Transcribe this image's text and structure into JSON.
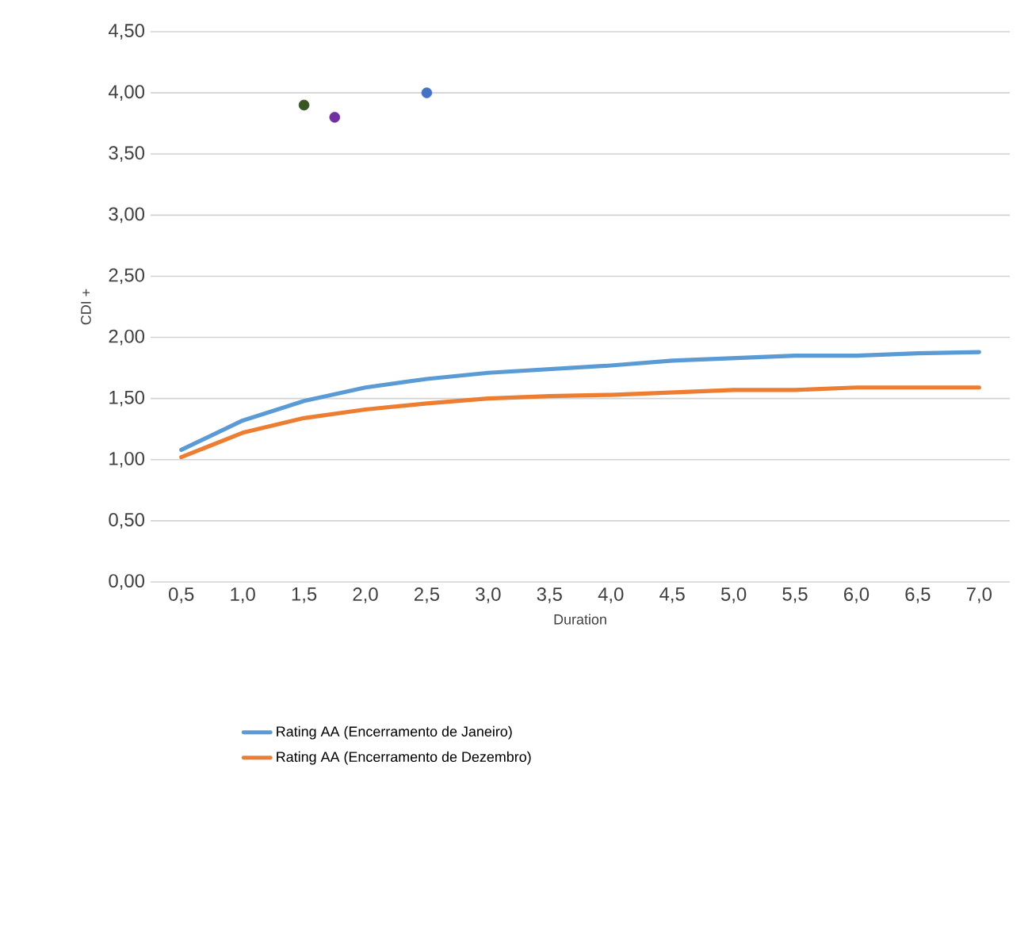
{
  "chart_data": {
    "type": "line",
    "xlabel": "Duration",
    "ylabel": "CDI +",
    "x": [
      0.5,
      1.0,
      1.5,
      2.0,
      2.5,
      3.0,
      3.5,
      4.0,
      4.5,
      5.0,
      5.5,
      6.0,
      6.5,
      7.0
    ],
    "series": [
      {
        "name": "Rating AA (Encerramento de Janeiro)",
        "color": "#5b9bd5",
        "values": [
          1.08,
          1.32,
          1.48,
          1.59,
          1.66,
          1.71,
          1.74,
          1.77,
          1.81,
          1.83,
          1.85,
          1.85,
          1.87,
          1.88
        ]
      },
      {
        "name": "Rating AA (Encerramento de Dezembro)",
        "color": "#ed7d31",
        "values": [
          1.02,
          1.22,
          1.34,
          1.41,
          1.46,
          1.5,
          1.52,
          1.53,
          1.55,
          1.57,
          1.57,
          1.59,
          1.59,
          1.59
        ]
      },
      {
        "type": "scatter",
        "color": "#375623",
        "x": [
          1.5
        ],
        "values": [
          3.9
        ]
      },
      {
        "type": "scatter",
        "color": "#7030a0",
        "x": [
          1.75
        ],
        "values": [
          3.8
        ]
      },
      {
        "type": "scatter",
        "color": "#4472c4",
        "x": [
          2.5
        ],
        "values": [
          4.0
        ]
      }
    ],
    "xlim": [
      0.25,
      7.25
    ],
    "xticks": [
      {
        "value": 0.5,
        "label": "0,5"
      },
      {
        "value": 1.0,
        "label": "1,0"
      },
      {
        "value": 1.5,
        "label": "1,5"
      },
      {
        "value": 2.0,
        "label": "2,0"
      },
      {
        "value": 2.5,
        "label": "2,5"
      },
      {
        "value": 3.0,
        "label": "3,0"
      },
      {
        "value": 3.5,
        "label": "3,5"
      },
      {
        "value": 4.0,
        "label": "4,0"
      },
      {
        "value": 4.5,
        "label": "4,5"
      },
      {
        "value": 5.0,
        "label": "5,0"
      },
      {
        "value": 5.5,
        "label": "5,5"
      },
      {
        "value": 6.0,
        "label": "6,0"
      },
      {
        "value": 6.5,
        "label": "6,5"
      },
      {
        "value": 7.0,
        "label": "7,0"
      }
    ],
    "ylim": [
      0,
      4.5
    ],
    "yticks": [
      {
        "value": 0,
        "label": "0,00"
      },
      {
        "value": 0.5,
        "label": "0,50"
      },
      {
        "value": 1.0,
        "label": "1,00"
      },
      {
        "value": 1.5,
        "label": "1,50"
      },
      {
        "value": 2.0,
        "label": "2,00"
      },
      {
        "value": 2.5,
        "label": "2,50"
      },
      {
        "value": 3.0,
        "label": "3,00"
      },
      {
        "value": 3.5,
        "label": "3,50"
      },
      {
        "value": 4.0,
        "label": "4,00"
      },
      {
        "value": 4.5,
        "label": "4,50"
      }
    ],
    "grid": "y",
    "legend": "bottom",
    "line_style": "solid"
  }
}
